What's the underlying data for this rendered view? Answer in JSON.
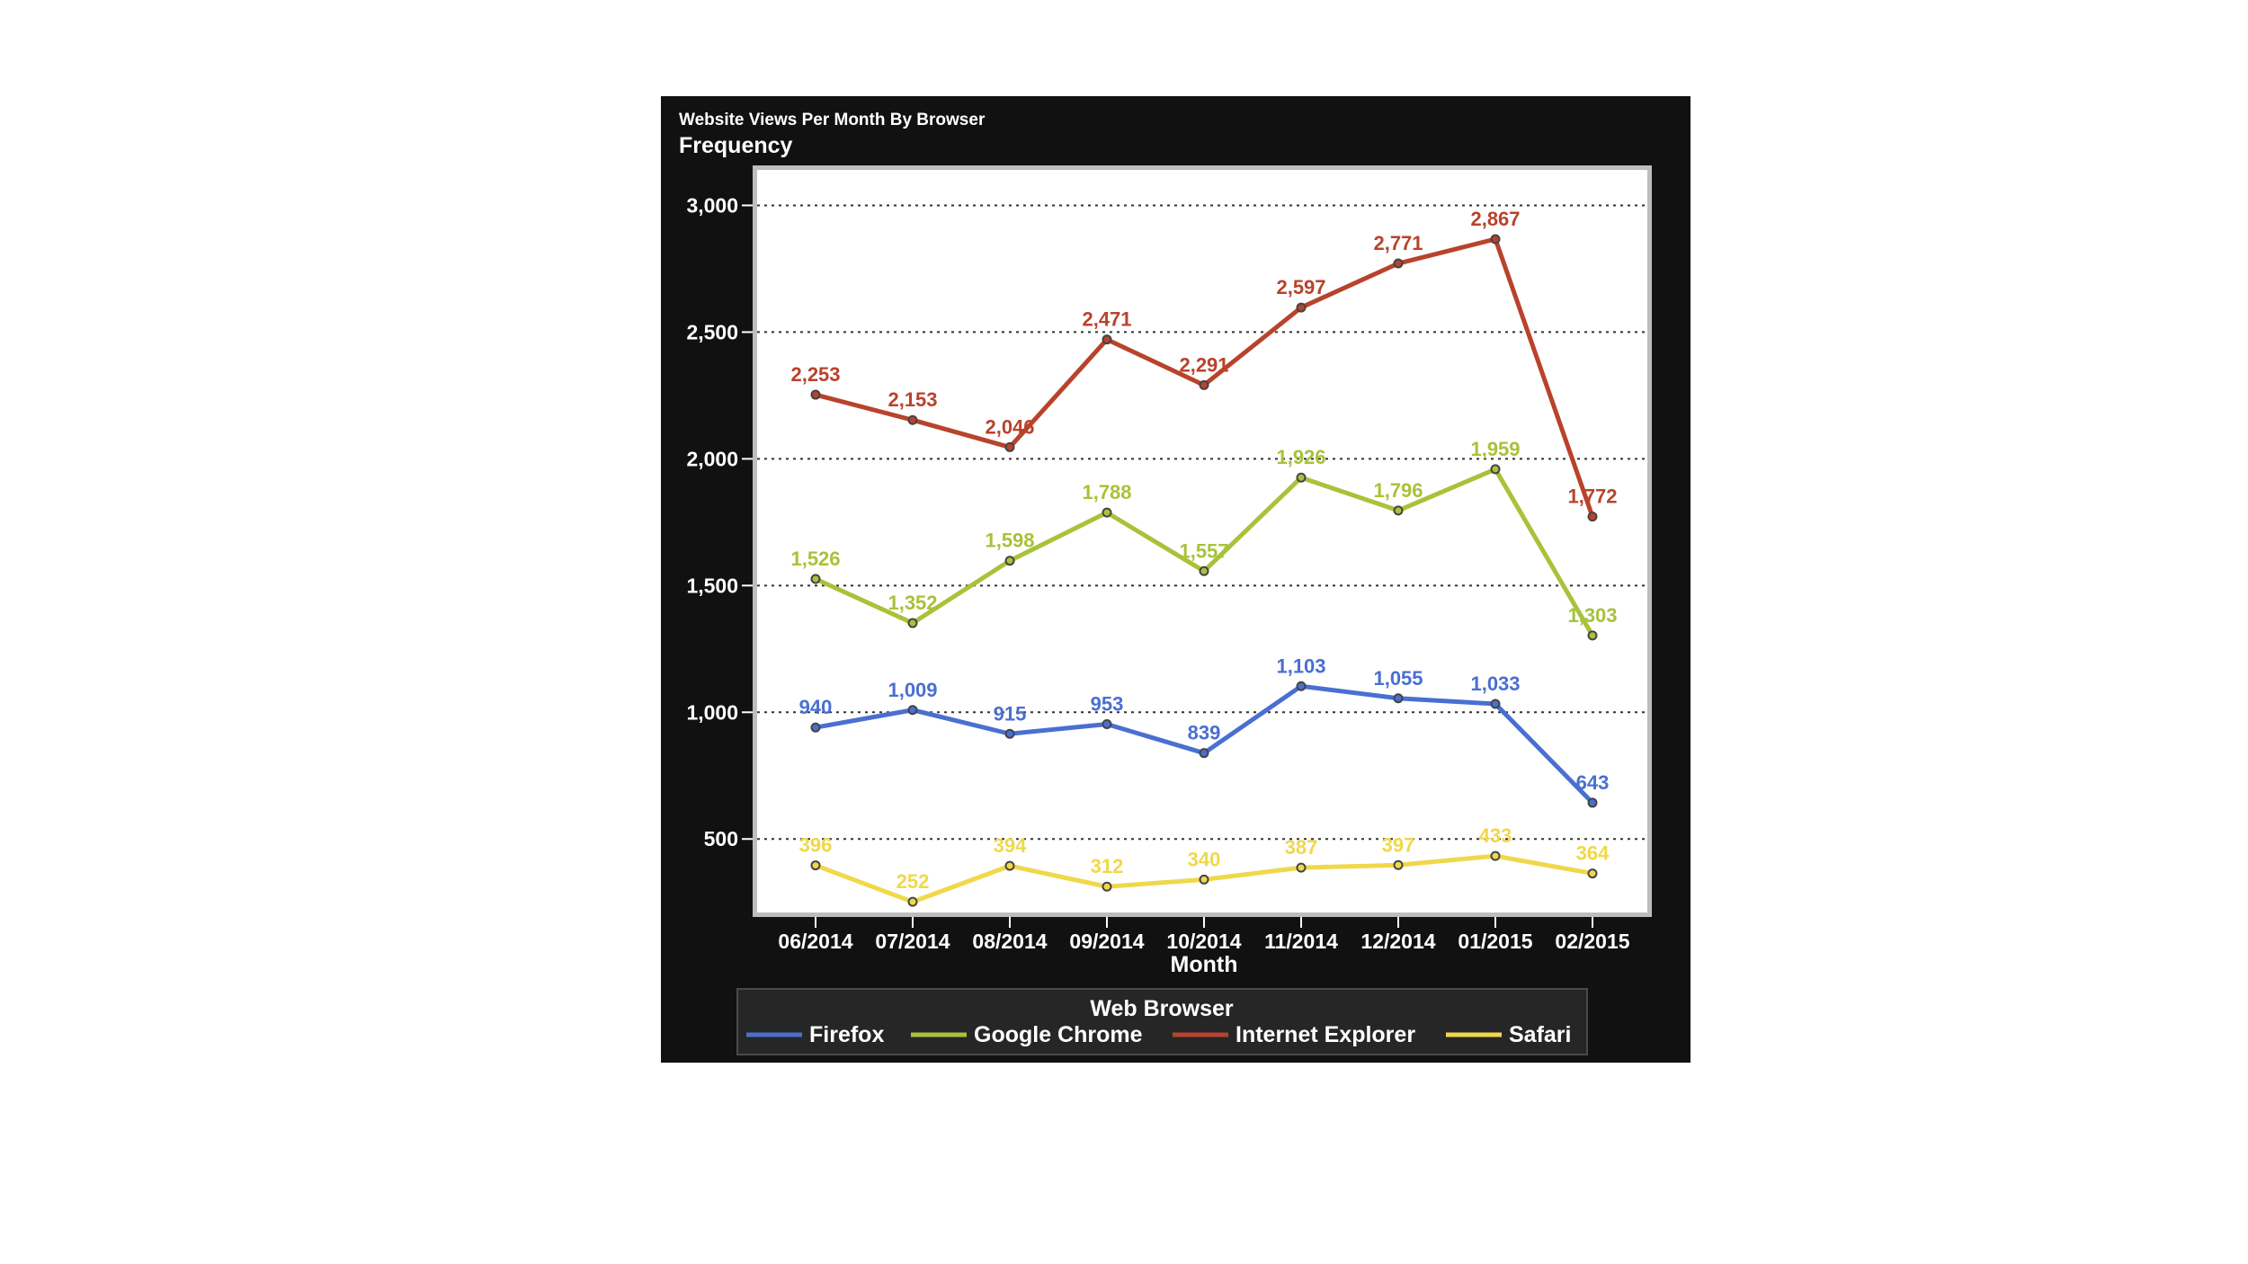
{
  "chart_data": {
    "type": "line",
    "title": "Website Views Per Month By Browser",
    "ylabel": "Frequency",
    "xlabel": "Month",
    "categories": [
      "06/2014",
      "07/2014",
      "08/2014",
      "09/2014",
      "10/2014",
      "11/2014",
      "12/2014",
      "01/2015",
      "02/2015"
    ],
    "ylim": [
      210,
      3140
    ],
    "yticks": [
      500,
      1000,
      1500,
      2000,
      2500,
      3000
    ],
    "ytick_labels": [
      "500",
      "1,000",
      "1,500",
      "2,000",
      "2,500",
      "3,000"
    ],
    "grid": true,
    "legend_title": "Web Browser",
    "legend_position": "bottom",
    "series": [
      {
        "name": "Firefox",
        "color": "#4a6fd1",
        "values": [
          940,
          1009,
          915,
          953,
          839,
          1103,
          1055,
          1033,
          643
        ],
        "labels": [
          "940",
          "1,009",
          "915",
          "953",
          "839",
          "1,103",
          "1,055",
          "1,033",
          "643"
        ]
      },
      {
        "name": "Google Chrome",
        "color": "#a8c23a",
        "values": [
          1526,
          1352,
          1598,
          1788,
          1557,
          1926,
          1796,
          1959,
          1303
        ],
        "labels": [
          "1,526",
          "1,352",
          "1,598",
          "1,788",
          "1,557",
          "1,926",
          "1,796",
          "1,959",
          "1,303"
        ]
      },
      {
        "name": "Internet Explorer",
        "color": "#b8432c",
        "values": [
          2253,
          2153,
          2046,
          2471,
          2291,
          2597,
          2771,
          2867,
          1772
        ],
        "labels": [
          "2,253",
          "2,153",
          "2,046",
          "2,471",
          "2,291",
          "2,597",
          "2,771",
          "2,867",
          "1,772"
        ]
      },
      {
        "name": "Safari",
        "color": "#f0d84a",
        "values": [
          396,
          252,
          394,
          312,
          340,
          387,
          397,
          433,
          364
        ],
        "labels": [
          "396",
          "252",
          "394",
          "312",
          "340",
          "387",
          "397",
          "433",
          "364"
        ]
      }
    ]
  }
}
